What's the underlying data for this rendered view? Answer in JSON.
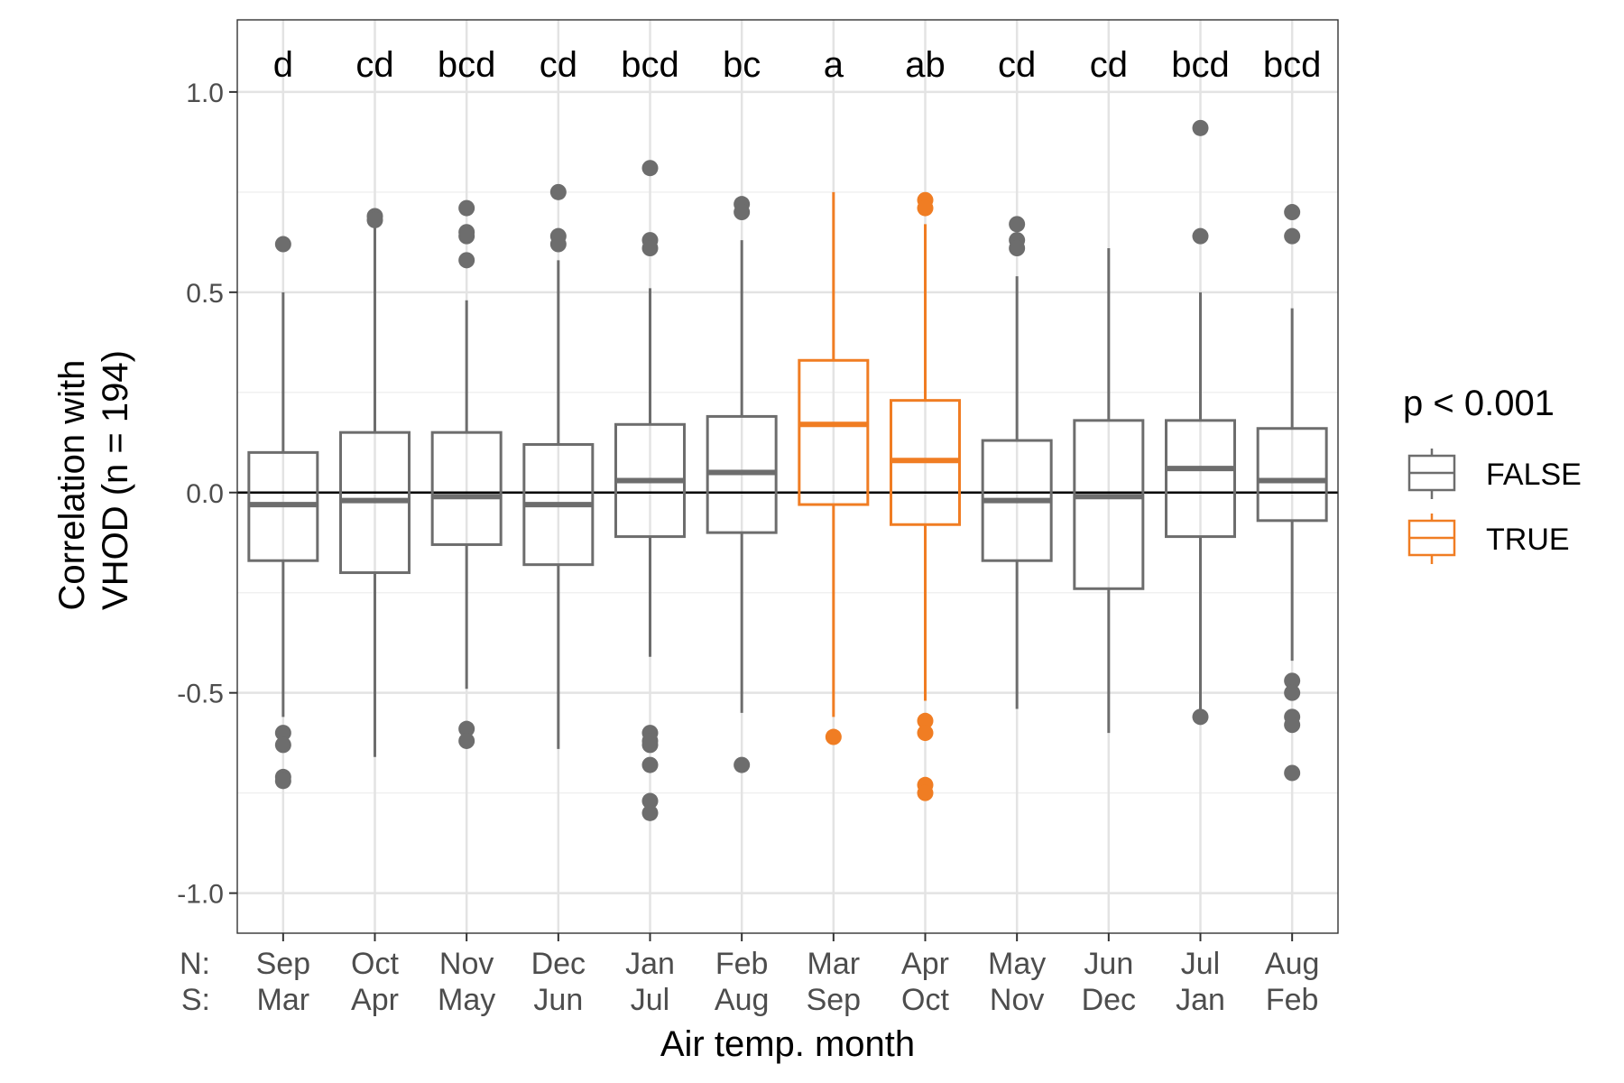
{
  "chart_data": {
    "type": "box",
    "xlabel": "Air temp. month",
    "ylabel": [
      "Correlation with",
      "VHOD (n = 194)"
    ],
    "ylim": [
      -1.1,
      1.18
    ],
    "yticks": [
      -1.0,
      -0.5,
      0.0,
      0.5,
      1.0
    ],
    "ytick_labels": [
      "-1.0",
      "-0.5",
      "0.0",
      "0.5",
      "1.0"
    ],
    "hemisphere_labels": [
      "N:",
      "S:"
    ],
    "grid": true,
    "reference_line_y": 0.0,
    "legend": {
      "title": "p < 0.001",
      "position": "right",
      "entries": [
        {
          "label": "FALSE",
          "color": "#6d6d6d"
        },
        {
          "label": "TRUE",
          "color": "#f07d23"
        }
      ]
    },
    "categories": [
      {
        "north": "Sep",
        "south": "Mar",
        "letter": "d",
        "significant": false,
        "whisker_low": -0.56,
        "q1": -0.17,
        "median": -0.03,
        "q3": 0.1,
        "whisker_high": 0.5,
        "outliers": [
          0.62,
          -0.6,
          -0.63,
          -0.71,
          -0.72
        ]
      },
      {
        "north": "Oct",
        "south": "Apr",
        "letter": "cd",
        "significant": false,
        "whisker_low": -0.66,
        "q1": -0.2,
        "median": -0.02,
        "q3": 0.15,
        "whisker_high": 0.67,
        "outliers": [
          0.69,
          0.68
        ]
      },
      {
        "north": "Nov",
        "south": "May",
        "letter": "bcd",
        "significant": false,
        "whisker_low": -0.49,
        "q1": -0.13,
        "median": -0.01,
        "q3": 0.15,
        "whisker_high": 0.48,
        "outliers": [
          0.71,
          0.65,
          0.64,
          0.58,
          -0.59,
          -0.62
        ]
      },
      {
        "north": "Dec",
        "south": "Jun",
        "letter": "cd",
        "significant": false,
        "whisker_low": -0.64,
        "q1": -0.18,
        "median": -0.03,
        "q3": 0.12,
        "whisker_high": 0.58,
        "outliers": [
          0.75,
          0.64,
          0.62
        ]
      },
      {
        "north": "Jan",
        "south": "Jul",
        "letter": "bcd",
        "significant": false,
        "whisker_low": -0.41,
        "q1": -0.11,
        "median": 0.03,
        "q3": 0.17,
        "whisker_high": 0.51,
        "outliers": [
          0.81,
          0.63,
          0.61,
          -0.6,
          -0.62,
          -0.63,
          -0.68,
          -0.77,
          -0.8
        ]
      },
      {
        "north": "Feb",
        "south": "Aug",
        "letter": "bc",
        "significant": false,
        "whisker_low": -0.55,
        "q1": -0.1,
        "median": 0.05,
        "q3": 0.19,
        "whisker_high": 0.63,
        "outliers": [
          0.72,
          0.7,
          -0.68
        ]
      },
      {
        "north": "Mar",
        "south": "Sep",
        "letter": "a",
        "significant": true,
        "whisker_low": -0.56,
        "q1": -0.03,
        "median": 0.17,
        "q3": 0.33,
        "whisker_high": 0.75,
        "outliers": [
          -0.61
        ]
      },
      {
        "north": "Apr",
        "south": "Oct",
        "letter": "ab",
        "significant": true,
        "whisker_low": -0.52,
        "q1": -0.08,
        "median": 0.08,
        "q3": 0.23,
        "whisker_high": 0.67,
        "outliers": [
          0.73,
          0.71,
          -0.57,
          -0.6,
          -0.73,
          -0.75
        ]
      },
      {
        "north": "May",
        "south": "Nov",
        "letter": "cd",
        "significant": false,
        "whisker_low": -0.54,
        "q1": -0.17,
        "median": -0.02,
        "q3": 0.13,
        "whisker_high": 0.54,
        "outliers": [
          0.67,
          0.63,
          0.61
        ]
      },
      {
        "north": "Jun",
        "south": "Dec",
        "letter": "cd",
        "significant": false,
        "whisker_low": -0.6,
        "q1": -0.24,
        "median": -0.01,
        "q3": 0.18,
        "whisker_high": 0.61,
        "outliers": []
      },
      {
        "north": "Jul",
        "south": "Jan",
        "letter": "bcd",
        "significant": false,
        "whisker_low": -0.56,
        "q1": -0.11,
        "median": 0.06,
        "q3": 0.18,
        "whisker_high": 0.5,
        "outliers": [
          0.91,
          0.64,
          -0.56
        ]
      },
      {
        "north": "Aug",
        "south": "Feb",
        "letter": "bcd",
        "significant": false,
        "whisker_low": -0.42,
        "q1": -0.07,
        "median": 0.03,
        "q3": 0.16,
        "whisker_high": 0.46,
        "outliers": [
          0.7,
          0.64,
          -0.47,
          -0.5,
          -0.56,
          -0.58,
          -0.7
        ]
      }
    ]
  }
}
